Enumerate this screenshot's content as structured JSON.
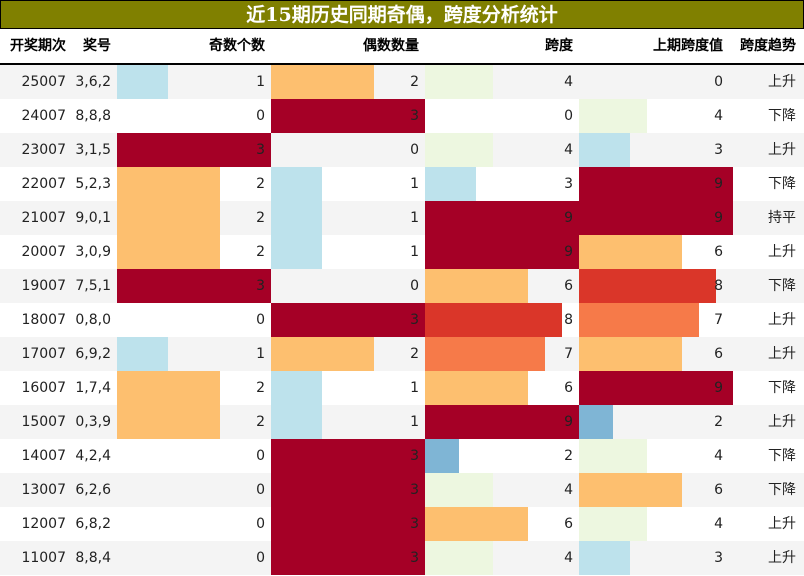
{
  "title": "近15期历史同期奇偶，跨度分析统计",
  "headers": [
    "开奖期次",
    "奖号",
    "奇数个数",
    "偶数数量",
    "跨度",
    "上期跨度值",
    "跨度趋势"
  ],
  "colors": {
    "title_bg": "#808000",
    "row_alt": "#f4f4f4",
    "v1of3": "#bde2ec",
    "v2of3": "#fdbf6f",
    "v3of3": "#a50026",
    "span": {
      "0": "transparent",
      "2": "#7fb5d5",
      "3": "#bde2ec",
      "4": "#edf7e0",
      "6": "#fdbf6f",
      "7": "#f67a49",
      "8": "#da3629",
      "9": "#a50026"
    }
  },
  "rows": [
    [
      "25007",
      "3,6,2",
      "1",
      "2",
      "4",
      "0",
      "上升"
    ],
    [
      "24007",
      "8,8,8",
      "0",
      "3",
      "0",
      "4",
      "下降"
    ],
    [
      "23007",
      "3,1,5",
      "3",
      "0",
      "4",
      "3",
      "上升"
    ],
    [
      "22007",
      "5,2,3",
      "2",
      "1",
      "3",
      "9",
      "下降"
    ],
    [
      "21007",
      "9,0,1",
      "2",
      "1",
      "9",
      "9",
      "持平"
    ],
    [
      "20007",
      "3,0,9",
      "2",
      "1",
      "9",
      "6",
      "上升"
    ],
    [
      "19007",
      "7,5,1",
      "3",
      "0",
      "6",
      "8",
      "下降"
    ],
    [
      "18007",
      "0,8,0",
      "0",
      "3",
      "8",
      "7",
      "上升"
    ],
    [
      "17007",
      "6,9,2",
      "1",
      "2",
      "7",
      "6",
      "上升"
    ],
    [
      "16007",
      "1,7,4",
      "2",
      "1",
      "6",
      "9",
      "下降"
    ],
    [
      "15007",
      "0,3,9",
      "2",
      "1",
      "9",
      "2",
      "上升"
    ],
    [
      "14007",
      "4,2,4",
      "0",
      "3",
      "2",
      "4",
      "下降"
    ],
    [
      "13007",
      "6,2,6",
      "0",
      "3",
      "4",
      "6",
      "下降"
    ],
    [
      "12007",
      "6,8,2",
      "0",
      "3",
      "6",
      "4",
      "上升"
    ],
    [
      "11007",
      "8,8,4",
      "0",
      "3",
      "4",
      "3",
      "上升"
    ]
  ]
}
